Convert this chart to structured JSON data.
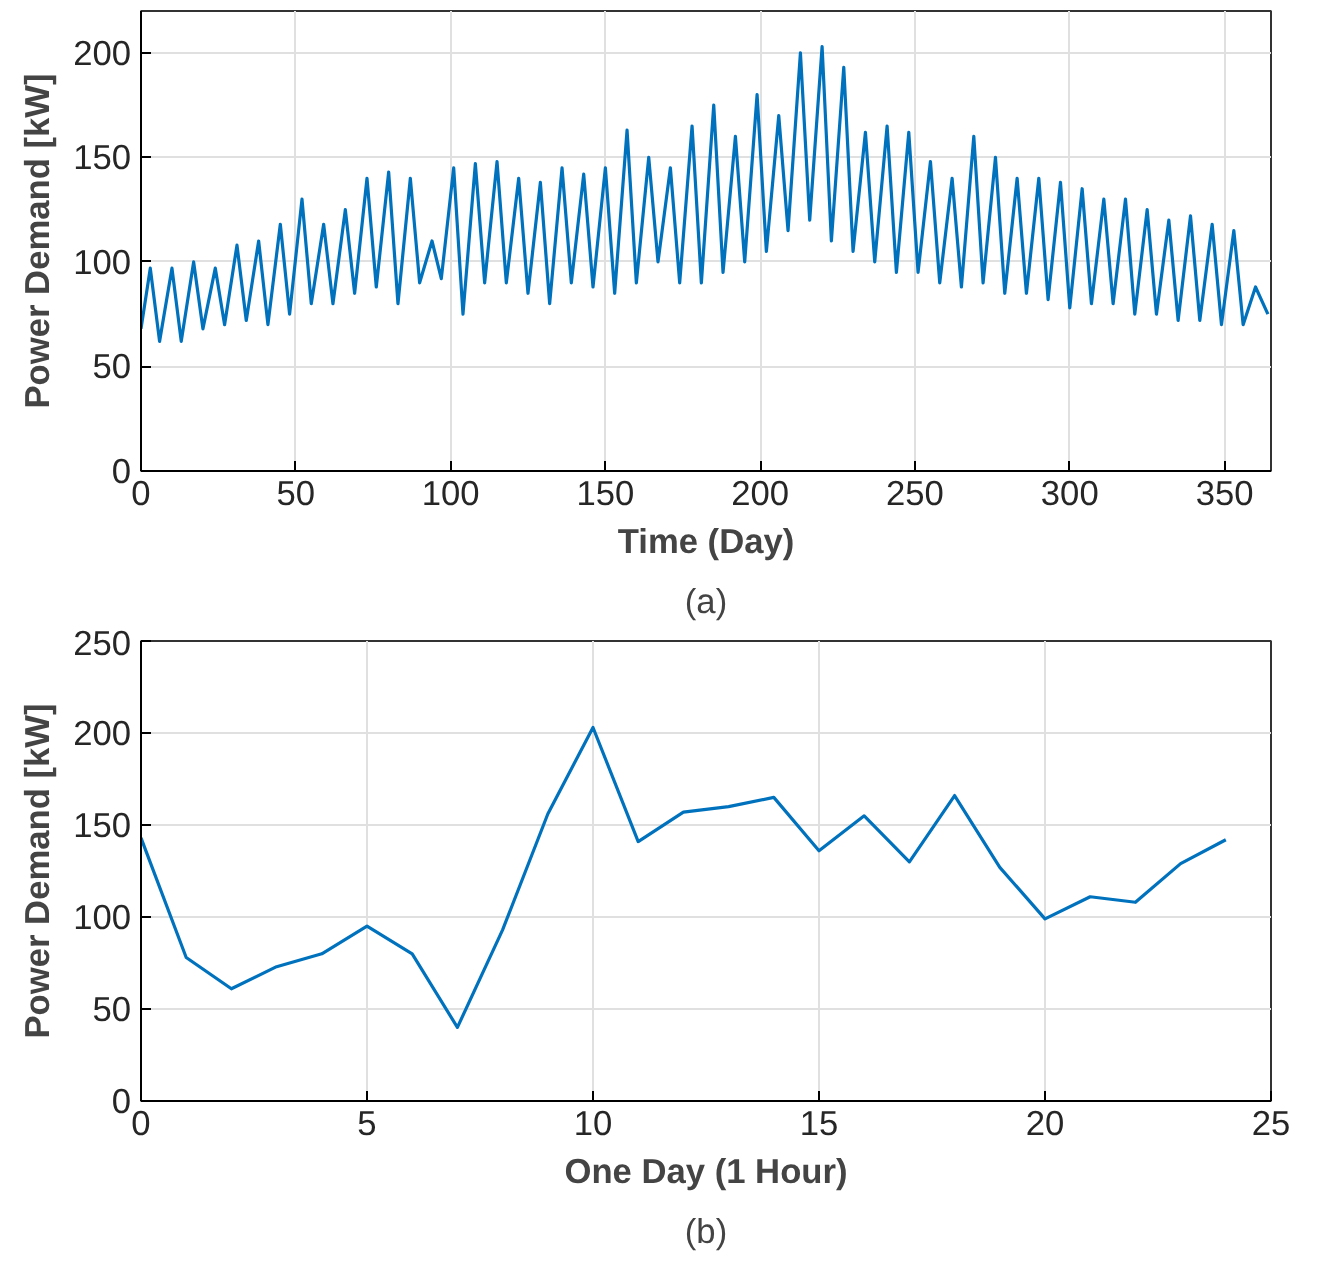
{
  "chart_data": [
    {
      "type": "line",
      "xlabel": "Time (Day)",
      "ylabel": "Power Demand [kW]",
      "annotations": [
        "(a)"
      ],
      "xlim": [
        0,
        365
      ],
      "ylim": [
        0,
        220
      ],
      "xticks": [
        0,
        50,
        100,
        150,
        200,
        250,
        300,
        350
      ],
      "yticks": [
        0,
        50,
        100,
        150,
        200
      ],
      "grid": true,
      "series": [
        {
          "color": "#0072bd",
          "x": [
            0,
            3,
            6,
            10,
            13,
            17,
            20,
            24,
            27,
            31,
            34,
            38,
            41,
            45,
            48,
            52,
            55,
            59,
            62,
            66,
            69,
            73,
            76,
            80,
            83,
            87,
            90,
            94,
            97,
            101,
            104,
            108,
            111,
            115,
            118,
            122,
            125,
            129,
            132,
            136,
            139,
            143,
            146,
            150,
            153,
            157,
            160,
            164,
            167,
            171,
            174,
            178,
            181,
            185,
            188,
            192,
            195,
            199,
            202,
            206,
            209,
            213,
            216,
            220,
            223,
            227,
            230,
            234,
            237,
            241,
            244,
            248,
            251,
            255,
            258,
            262,
            265,
            269,
            272,
            276,
            279,
            283,
            286,
            290,
            293,
            297,
            300,
            304,
            307,
            311,
            314,
            318,
            321,
            325,
            328,
            332,
            335,
            339,
            342,
            346,
            349,
            353,
            356,
            360,
            364
          ],
          "values": [
            68,
            97,
            62,
            97,
            62,
            100,
            68,
            97,
            70,
            108,
            72,
            110,
            70,
            118,
            75,
            130,
            80,
            118,
            80,
            125,
            85,
            140,
            88,
            143,
            80,
            140,
            90,
            110,
            92,
            145,
            75,
            147,
            90,
            148,
            90,
            140,
            85,
            138,
            80,
            145,
            90,
            142,
            88,
            145,
            85,
            163,
            90,
            150,
            100,
            145,
            90,
            165,
            90,
            175,
            95,
            160,
            100,
            180,
            105,
            170,
            115,
            200,
            120,
            203,
            110,
            193,
            105,
            162,
            100,
            165,
            95,
            162,
            95,
            148,
            90,
            140,
            88,
            160,
            90,
            150,
            85,
            140,
            85,
            140,
            82,
            138,
            78,
            135,
            80,
            130,
            80,
            130,
            75,
            125,
            75,
            120,
            72,
            122,
            72,
            118,
            70,
            115,
            70,
            88,
            75
          ]
        }
      ]
    },
    {
      "type": "line",
      "xlabel": "One Day (1 Hour)",
      "ylabel": "Power Demand [kW]",
      "annotations": [
        "(b)"
      ],
      "xlim": [
        0,
        25
      ],
      "ylim": [
        0,
        250
      ],
      "xticks": [
        0,
        5,
        10,
        15,
        20,
        25
      ],
      "yticks": [
        0,
        50,
        100,
        150,
        200,
        250
      ],
      "grid": true,
      "series": [
        {
          "color": "#0072bd",
          "x": [
            0,
            1,
            2,
            3,
            4,
            5,
            6,
            7,
            8,
            9,
            10,
            11,
            12,
            13,
            14,
            15,
            16,
            17,
            18,
            19,
            20,
            21,
            22,
            23,
            24
          ],
          "values": [
            143,
            78,
            61,
            73,
            80,
            95,
            80,
            40,
            93,
            156,
            203,
            141,
            157,
            160,
            165,
            136,
            155,
            130,
            166,
            127,
            99,
            111,
            108,
            129,
            142
          ]
        }
      ]
    }
  ]
}
